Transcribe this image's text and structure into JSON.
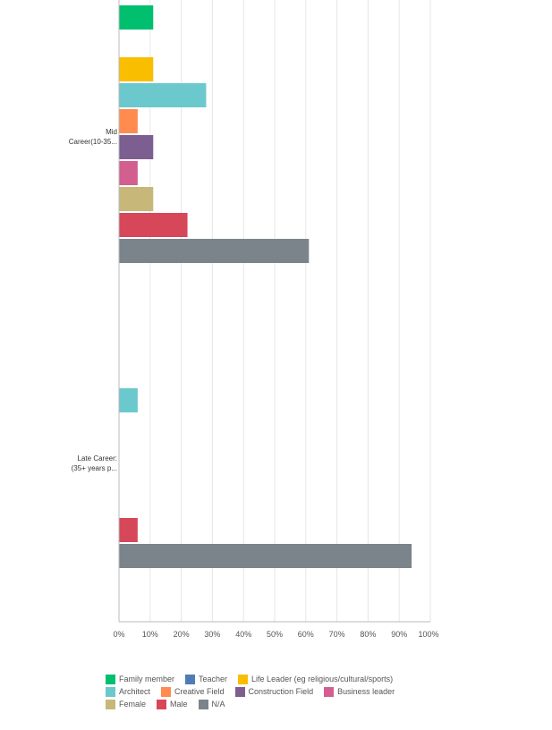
{
  "chart_data": {
    "type": "bar",
    "orientation": "horizontal",
    "categories": [
      "Mid Career(10-35...",
      "Late Career: (35+ years p..."
    ],
    "category_lines": [
      [
        "Mid",
        "Career(10-35..."
      ],
      [
        "Late Career:",
        "(35+ years p..."
      ]
    ],
    "series": [
      {
        "name": "Family member",
        "color": "#00bf6f",
        "values": [
          11,
          0
        ]
      },
      {
        "name": "Teacher",
        "color": "#507cb6",
        "values": [
          0,
          0
        ]
      },
      {
        "name": "Life Leader (eg religious/cultural/sports)",
        "color": "#f9be00",
        "values": [
          11,
          0
        ]
      },
      {
        "name": "Architect",
        "color": "#6bc8cd",
        "values": [
          28,
          6
        ]
      },
      {
        "name": "Creative Field",
        "color": "#ff8b4f",
        "values": [
          6,
          0
        ]
      },
      {
        "name": "Construction Field",
        "color": "#7d5e90",
        "values": [
          11,
          0
        ]
      },
      {
        "name": "Business leader",
        "color": "#d25f90",
        "values": [
          6,
          0
        ]
      },
      {
        "name": "Female",
        "color": "#c7b879",
        "values": [
          11,
          0
        ]
      },
      {
        "name": "Male",
        "color": "#d6475a",
        "values": [
          22,
          6
        ]
      },
      {
        "name": "N/A",
        "color": "#7b848b",
        "values": [
          61,
          94
        ]
      }
    ],
    "x_ticks": [
      "0%",
      "10%",
      "20%",
      "30%",
      "40%",
      "50%",
      "60%",
      "70%",
      "80%",
      "90%",
      "100%"
    ],
    "xlim": [
      0,
      100
    ],
    "grid": true,
    "legend_position": "bottom"
  }
}
